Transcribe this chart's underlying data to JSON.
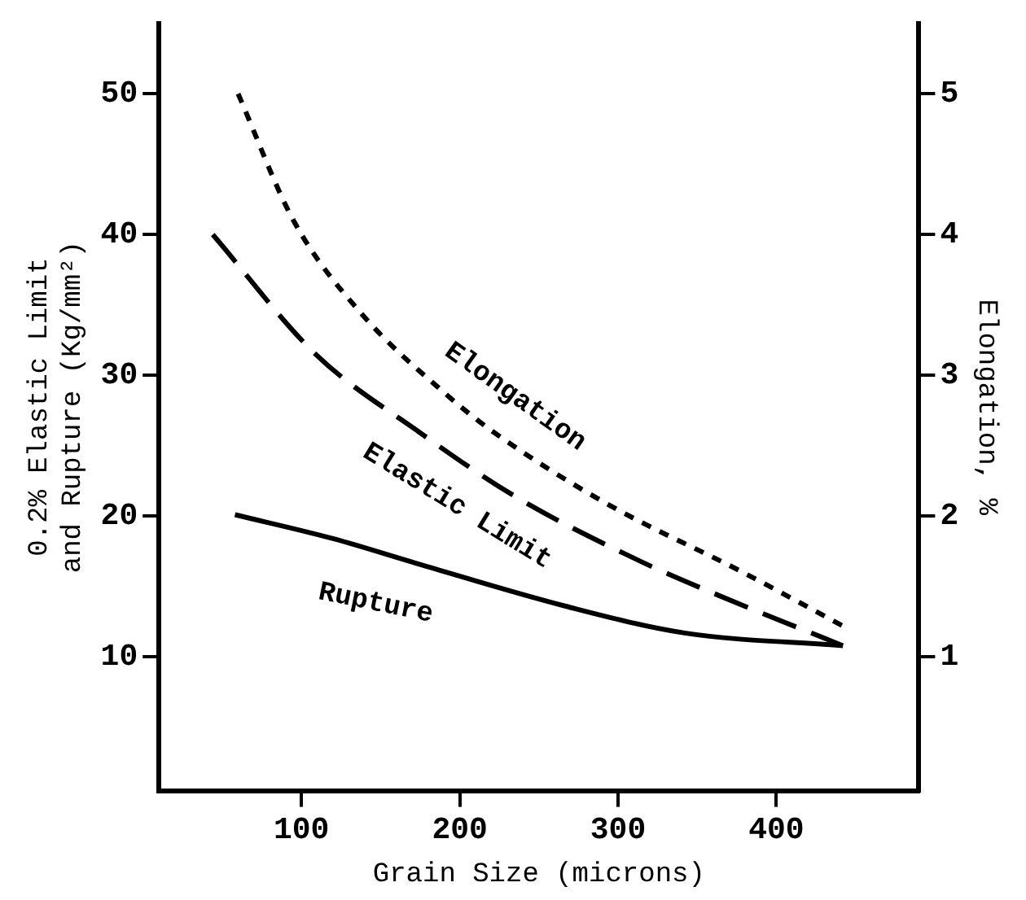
{
  "chart_data": {
    "type": "line",
    "xlabel": "Grain Size (microns)",
    "ylabel": "0.2% Elastic Limit and Rupture (Kg/mm²)",
    "y2label": "Elongation, %",
    "xlim": [
      10,
      490
    ],
    "xticks": [
      100,
      200,
      300,
      400
    ],
    "ylim": [
      0.5,
      55
    ],
    "yticks": [
      10,
      20,
      30,
      40,
      50
    ],
    "y2lim": [
      0.05,
      5.5
    ],
    "y2ticks": [
      1,
      2,
      3,
      4,
      5
    ],
    "grid": false,
    "legend": false,
    "marker": "none",
    "series": [
      {
        "name": "Rupture",
        "color": "#000000",
        "line_style": "solid",
        "x": [
          58,
          120,
          174,
          267,
          342,
          442
        ],
        "values": [
          20.1,
          18.4,
          16.6,
          13.6,
          11.7,
          10.8
        ]
      },
      {
        "name": "Elastic Limit",
        "color": "#000000",
        "line_style": "dashed",
        "x": [
          44,
          109,
          174,
          235,
          314,
          365,
          442
        ],
        "values": [
          40,
          31.5,
          26,
          21.4,
          16.8,
          14.3,
          10.8
        ]
      },
      {
        "name": "Elongation",
        "color": "#000000",
        "line_style": "dotted",
        "axis": "y2",
        "x": [
          60,
          95,
          137,
          193,
          221,
          291,
          379,
          442
        ],
        "values": [
          5.0,
          4.1,
          3.45,
          2.85,
          2.6,
          2.1,
          1.6,
          1.22
        ]
      }
    ]
  }
}
